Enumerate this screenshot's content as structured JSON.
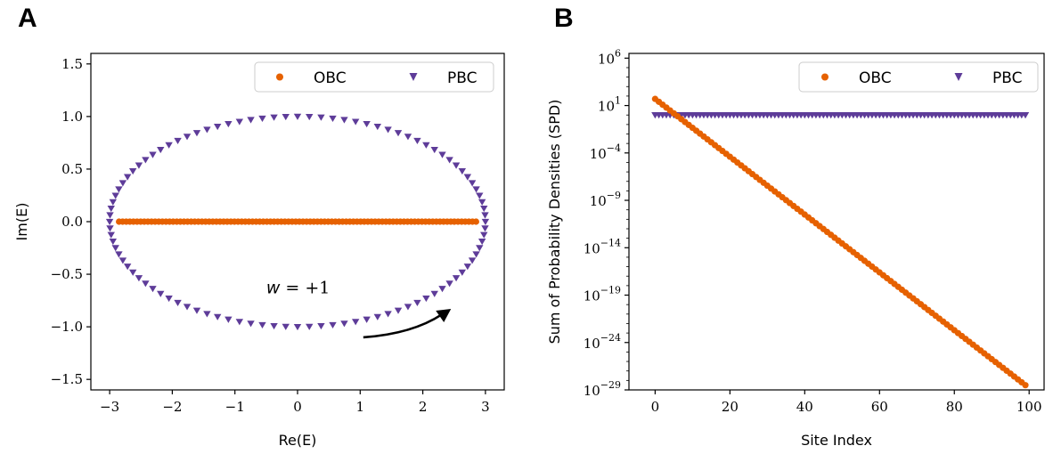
{
  "chart_data": [
    {
      "panel": "A",
      "type": "scatter",
      "xlabel": "Re(E)",
      "ylabel": "Im(E)",
      "xlim": [
        -3.3,
        3.3
      ],
      "ylim": [
        -1.6,
        1.6
      ],
      "xticks": [
        -3,
        -2,
        -1,
        0,
        1,
        2,
        3
      ],
      "xtick_labels": [
        "−3",
        "−2",
        "−1",
        "0",
        "1",
        "2",
        "3"
      ],
      "yticks": [
        -1.5,
        -1.0,
        -0.5,
        0.0,
        0.5,
        1.0,
        1.5
      ],
      "ytick_labels": [
        "−1.5",
        "−1.0",
        "−0.5",
        "0.0",
        "0.5",
        "1.0",
        "1.5"
      ],
      "grid": false,
      "legend": "top-right",
      "annotation": {
        "w": "w",
        "rest": " = +1",
        "x": -0.5,
        "y": -0.68
      },
      "arrow": {
        "from": [
          1.05,
          -1.1
        ],
        "to": [
          2.45,
          -0.83
        ]
      },
      "series": [
        {
          "name": "OBC",
          "marker": "circle",
          "color": "#e66100",
          "kind": "line_samples",
          "x_from": -2.85,
          "x_to": 2.85,
          "count": 100,
          "y": 0.0
        },
        {
          "name": "PBC",
          "marker": "triangle-down",
          "color": "#5e3c99",
          "kind": "ellipse_samples",
          "a": 3.0,
          "b": 1.0,
          "count": 100
        }
      ]
    },
    {
      "panel": "B",
      "type": "scatter",
      "xlabel": "Site Index",
      "ylabel": "Sum of Probability Densities (SPD)",
      "yscale": "log",
      "xlim": [
        -7,
        104
      ],
      "ylim_log10": [
        -29,
        6.5
      ],
      "xticks": [
        0,
        20,
        40,
        60,
        80,
        100
      ],
      "xtick_labels": [
        "0",
        "20",
        "40",
        "60",
        "80",
        "100"
      ],
      "ytick_exponents": [
        6,
        1,
        -4,
        -9,
        -14,
        -19,
        -24,
        -29
      ],
      "ytick_labels": [
        {
          "base": "10",
          "exp": "6"
        },
        {
          "base": "10",
          "exp": "1"
        },
        {
          "base": "10",
          "exp": "−4"
        },
        {
          "base": "10",
          "exp": "−9"
        },
        {
          "base": "10",
          "exp": "−14"
        },
        {
          "base": "10",
          "exp": "−19"
        },
        {
          "base": "10",
          "exp": "−24"
        },
        {
          "base": "10",
          "exp": "−29"
        }
      ],
      "grid": false,
      "legend": "top-right",
      "series": [
        {
          "name": "OBC",
          "marker": "circle",
          "color": "#e66100",
          "x_from": 0,
          "x_to": 99,
          "count": 100,
          "log10_from": 1.7,
          "log10_to": -28.5
        },
        {
          "name": "PBC",
          "marker": "triangle-down",
          "color": "#5e3c99",
          "x_from": 0,
          "x_to": 99,
          "count": 100,
          "log10_const": 0.0
        }
      ]
    }
  ]
}
